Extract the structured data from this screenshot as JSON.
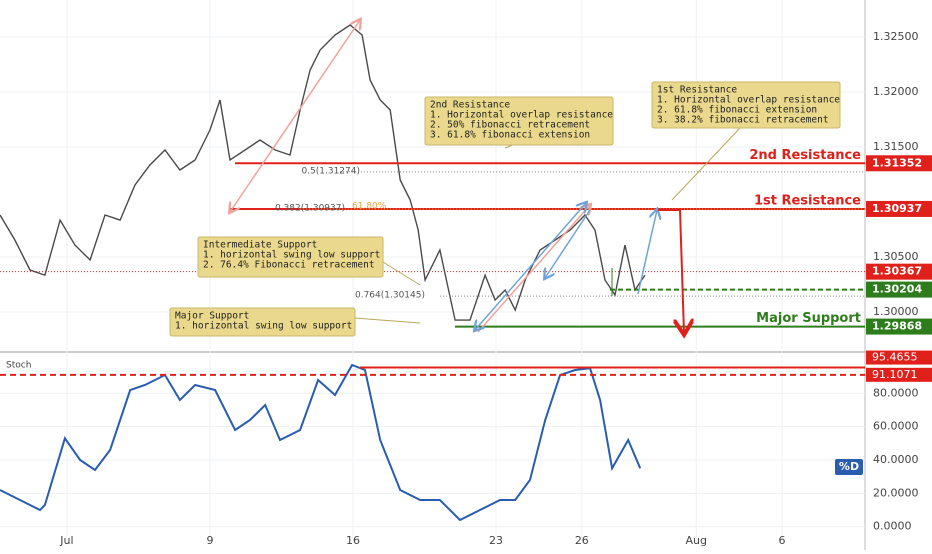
{
  "chart_data": [
    {
      "type": "line",
      "color": "#4a4a4a",
      "xlim": [
        -2.34,
        27.9
      ],
      "ylim": [
        1.29655,
        1.32836
      ],
      "yticks": [
        {
          "value": 1.325,
          "label": "1.32500"
        },
        {
          "value": 1.32,
          "label": "1.32000"
        },
        {
          "value": 1.315,
          "label": "1.31500"
        },
        {
          "value": 1.305,
          "label": "1.30500"
        },
        {
          "value": 1.3,
          "label": "1.30000"
        }
      ],
      "x": [
        -2.34,
        -1.82,
        -1.29,
        -0.77,
        -0.24,
        0.28,
        0.81,
        1.33,
        1.86,
        2.38,
        2.9,
        3.43,
        3.95,
        4.48,
        5.0,
        5.35,
        5.7,
        6.23,
        6.75,
        7.28,
        7.8,
        8.15,
        8.5,
        8.85,
        9.37,
        9.9,
        10.32,
        10.6,
        10.95,
        11.3,
        11.65,
        12.0,
        12.28,
        12.52,
        13.04,
        13.57,
        14.09,
        14.62,
        14.97,
        15.32,
        15.67,
        16.02,
        16.54,
        17.07,
        17.59,
        18.11,
        18.46,
        18.81,
        19.16,
        19.51,
        19.86,
        20.21
      ],
      "values": [
        1.30882,
        1.30655,
        1.30382,
        1.30336,
        1.30836,
        1.30609,
        1.30473,
        1.30882,
        1.30836,
        1.31155,
        1.31336,
        1.31473,
        1.31291,
        1.31382,
        1.31655,
        1.31927,
        1.31382,
        1.31473,
        1.31564,
        1.31473,
        1.31427,
        1.31836,
        1.322,
        1.32382,
        1.32518,
        1.32609,
        1.32518,
        1.32109,
        1.31927,
        1.31836,
        1.312,
        1.31018,
        1.30745,
        1.30291,
        1.30564,
        1.29927,
        1.29927,
        1.30336,
        1.30109,
        1.302,
        1.30018,
        1.30291,
        1.30564,
        1.30655,
        1.30745,
        1.30882,
        1.30745,
        1.30291,
        1.30155,
        1.30609,
        1.302,
        1.30336
      ],
      "levels": [
        {
          "value": 1.31352,
          "label": "2nd Resistance",
          "color": "#e0201b"
        },
        {
          "value": 1.30937,
          "label": "1st Resistance",
          "color": "#e0201b"
        },
        {
          "value": 1.30367,
          "color": "#e0201b"
        },
        {
          "value": 1.30204,
          "color": "#2e7d1c"
        },
        {
          "value": 1.29868,
          "label": "Major Support",
          "color": "#2e7d1c"
        }
      ],
      "fib": [
        {
          "value": 1.31274,
          "label": "0.5(1.31274)"
        },
        {
          "value": 1.30937,
          "label": "0.382(1.30937)"
        },
        {
          "value": 1.30145,
          "label": "0.764(1.30145)"
        }
      ],
      "fib_extension_label": "61.80%",
      "annotations": [
        {
          "lines": [
            "2nd Resistance",
            "1. Horizontal overlap resistance",
            "2. 50% fibonacci retracement",
            "3. 61.8% fibonacci extension"
          ]
        },
        {
          "lines": [
            "1st Resistance",
            "1. Horizontal overlap resistance",
            "2. 61.8% fibonacci extension",
            "3. 38.2% fibonacci retracement"
          ]
        },
        {
          "lines": [
            "Intermediate Support",
            "1. horizontal swing low support",
            "2. 76.4% Fibonacci retracement"
          ]
        },
        {
          "lines": [
            "Major Support",
            "1. horizontal swing low support"
          ]
        }
      ]
    },
    {
      "type": "line",
      "title": "Stoch",
      "name": "%D",
      "color": "#2a5db0",
      "xlim": [
        -2.34,
        27.9
      ],
      "ylim": [
        -11,
        103
      ],
      "yticks": [
        {
          "value": 0,
          "label": "0.0000"
        },
        {
          "value": 20,
          "label": "20.0000"
        },
        {
          "value": 40,
          "label": "40.0000"
        },
        {
          "value": 60,
          "label": "60.0000"
        },
        {
          "value": 80,
          "label": "80.0000"
        }
      ],
      "xticks": [
        {
          "value": 0,
          "label": "Jul"
        },
        {
          "value": 5,
          "label": "9"
        },
        {
          "value": 10,
          "label": "16"
        },
        {
          "value": 15,
          "label": "23"
        },
        {
          "value": 18,
          "label": "26"
        },
        {
          "value": 22,
          "label": "Aug"
        },
        {
          "value": 25,
          "label": "6"
        }
      ],
      "x": [
        -2.34,
        -1.64,
        -0.94,
        -0.77,
        -0.07,
        0.46,
        0.98,
        1.51,
        2.21,
        2.73,
        3.43,
        3.95,
        4.48,
        5.18,
        5.88,
        6.4,
        6.93,
        7.45,
        8.15,
        8.78,
        9.37,
        9.97,
        10.42,
        10.95,
        11.65,
        12.35,
        13.04,
        13.74,
        14.44,
        15.14,
        15.67,
        16.19,
        16.72,
        17.24,
        17.77,
        18.29,
        18.64,
        19.06,
        19.62,
        20.04
      ],
      "values": [
        22,
        16,
        10,
        13,
        53,
        40,
        34,
        46,
        82,
        85,
        91,
        76,
        85,
        82,
        58,
        64,
        73,
        52,
        58,
        88,
        79,
        97,
        94,
        52,
        22,
        16,
        16,
        4,
        10,
        16,
        16,
        28,
        64,
        91,
        94,
        95,
        76,
        35,
        52,
        35
      ],
      "levels": [
        {
          "value": 95.4655,
          "color": "#e0201b"
        },
        {
          "value": 91.1071,
          "color": "#e0201b",
          "dashed": true
        }
      ]
    }
  ]
}
